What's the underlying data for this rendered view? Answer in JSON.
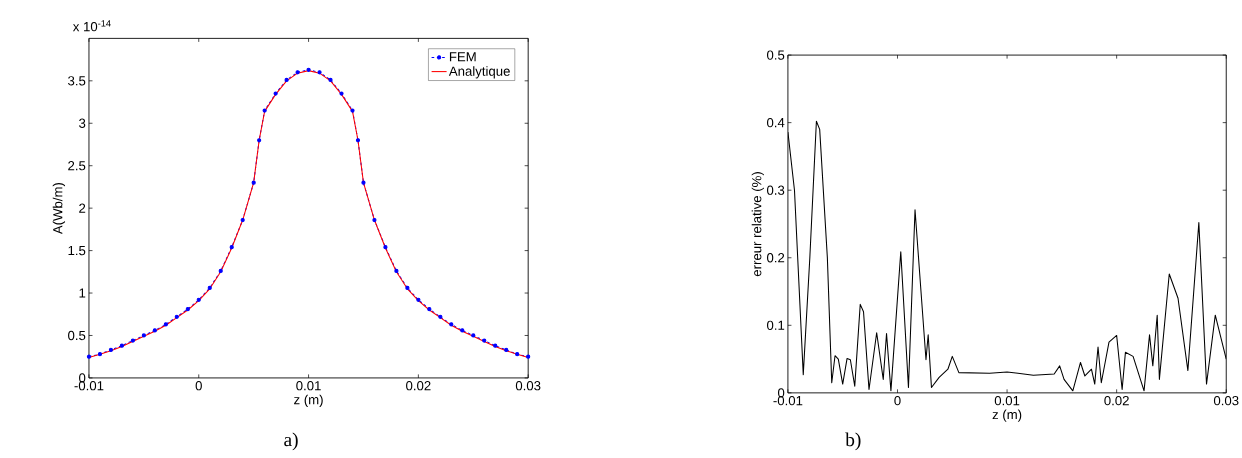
{
  "chart_data": [
    {
      "type": "line",
      "xlabel": "z (m)",
      "ylabel": "A(Wb/m)",
      "annotations": [
        "x 10$^{-14}$",
        "a)"
      ],
      "xlim": [
        -0.01,
        0.03
      ],
      "ylim": [
        0,
        4
      ],
      "xticks": [
        -0.01,
        0,
        0.01,
        0.02,
        0.03
      ],
      "yticks": [
        0,
        0.5,
        1,
        1.5,
        2,
        2.5,
        3,
        3.5
      ],
      "grid": false,
      "legend": "top right",
      "series": [
        {
          "name": "FEM",
          "color": "#0000ff",
          "marker": "circle",
          "line_style": "dashed",
          "x": [
            -0.01,
            -0.009,
            -0.008,
            -0.007,
            -0.006,
            -0.005,
            -0.004,
            -0.003,
            -0.002,
            -0.001,
            0,
            0.001,
            0.002,
            0.003,
            0.004,
            0.005,
            0.0055,
            0.006,
            0.007,
            0.008,
            0.009,
            0.01,
            0.011,
            0.012,
            0.013,
            0.014,
            0.0145,
            0.015,
            0.016,
            0.017,
            0.018,
            0.019,
            0.02,
            0.021,
            0.022,
            0.023,
            0.024,
            0.025,
            0.026,
            0.027,
            0.028,
            0.029,
            0.03
          ],
          "values": [
            0.25,
            0.28,
            0.33,
            0.38,
            0.44,
            0.5,
            0.56,
            0.63,
            0.72,
            0.81,
            0.92,
            1.06,
            1.26,
            1.54,
            1.86,
            2.3,
            2.8,
            3.15,
            3.35,
            3.51,
            3.6,
            3.63,
            3.6,
            3.51,
            3.35,
            3.15,
            2.8,
            2.3,
            1.86,
            1.54,
            1.26,
            1.06,
            0.92,
            0.81,
            0.72,
            0.63,
            0.56,
            0.5,
            0.44,
            0.38,
            0.33,
            0.28,
            0.25
          ]
        },
        {
          "name": "Analytique",
          "color": "#ff0000",
          "marker": "none",
          "line_style": "solid",
          "x": [
            -0.01,
            -0.009,
            -0.008,
            -0.007,
            -0.006,
            -0.005,
            -0.004,
            -0.003,
            -0.002,
            -0.001,
            0,
            0.001,
            0.002,
            0.003,
            0.004,
            0.005,
            0.0055,
            0.006,
            0.007,
            0.008,
            0.009,
            0.01,
            0.011,
            0.012,
            0.013,
            0.014,
            0.0145,
            0.015,
            0.016,
            0.017,
            0.018,
            0.019,
            0.02,
            0.021,
            0.022,
            0.023,
            0.024,
            0.025,
            0.026,
            0.027,
            0.028,
            0.029,
            0.03
          ],
          "values": [
            0.24,
            0.28,
            0.32,
            0.37,
            0.43,
            0.49,
            0.55,
            0.62,
            0.71,
            0.8,
            0.91,
            1.05,
            1.25,
            1.53,
            1.86,
            2.3,
            2.8,
            3.14,
            3.34,
            3.5,
            3.59,
            3.62,
            3.59,
            3.5,
            3.34,
            3.14,
            2.8,
            2.3,
            1.86,
            1.53,
            1.25,
            1.05,
            0.91,
            0.8,
            0.71,
            0.62,
            0.55,
            0.49,
            0.43,
            0.37,
            0.32,
            0.28,
            0.24
          ]
        }
      ]
    },
    {
      "type": "line",
      "xlabel": "z (m)",
      "ylabel": "erreur relative (%)",
      "annotations": [
        "b)"
      ],
      "xlim": [
        -0.01,
        0.03
      ],
      "ylim": [
        0,
        0.5
      ],
      "xticks": [
        -0.01,
        0,
        0.01,
        0.02,
        0.03
      ],
      "yticks": [
        0,
        0.1,
        0.2,
        0.3,
        0.4,
        0.5
      ],
      "grid": false,
      "legend": false,
      "series": [
        {
          "color": "#000000",
          "marker": "none",
          "line_style": "solid",
          "x": [
            -0.01,
            -0.0094,
            -0.0086,
            -0.008,
            -0.0074,
            -0.0071,
            -0.0064,
            -0.006,
            -0.0057,
            -0.0054,
            -0.005,
            -0.0046,
            -0.0043,
            -0.0039,
            -0.0034,
            -0.0031,
            -0.0026,
            -0.0019,
            -0.0013,
            -0.001,
            -0.0006,
            0.0003,
            0.001,
            0.0016,
            0.0026,
            0.0028,
            0.0031,
            0.0038,
            0.0046,
            0.005,
            0.0056,
            0.0084,
            0.01,
            0.0124,
            0.0143,
            0.0148,
            0.0152,
            0.016,
            0.0167,
            0.0171,
            0.0177,
            0.018,
            0.0183,
            0.0186,
            0.0193,
            0.02,
            0.0205,
            0.0208,
            0.0215,
            0.0225,
            0.023,
            0.0233,
            0.0237,
            0.0239,
            0.0248,
            0.0256,
            0.0265,
            0.0275,
            0.0282,
            0.029,
            0.03
          ],
          "values": [
            0.386,
            0.3,
            0.027,
            0.2,
            0.402,
            0.39,
            0.2,
            0.015,
            0.055,
            0.05,
            0.013,
            0.051,
            0.049,
            0.01,
            0.131,
            0.12,
            0.005,
            0.089,
            0.02,
            0.088,
            0.003,
            0.209,
            0.008,
            0.271,
            0.049,
            0.086,
            0.008,
            0.023,
            0.035,
            0.054,
            0.03,
            0.029,
            0.031,
            0.026,
            0.028,
            0.04,
            0.02,
            0.003,
            0.045,
            0.025,
            0.035,
            0.013,
            0.068,
            0.015,
            0.075,
            0.085,
            0.005,
            0.06,
            0.054,
            0.003,
            0.086,
            0.04,
            0.115,
            0.02,
            0.176,
            0.14,
            0.033,
            0.252,
            0.013,
            0.115,
            0.05
          ]
        }
      ]
    }
  ]
}
